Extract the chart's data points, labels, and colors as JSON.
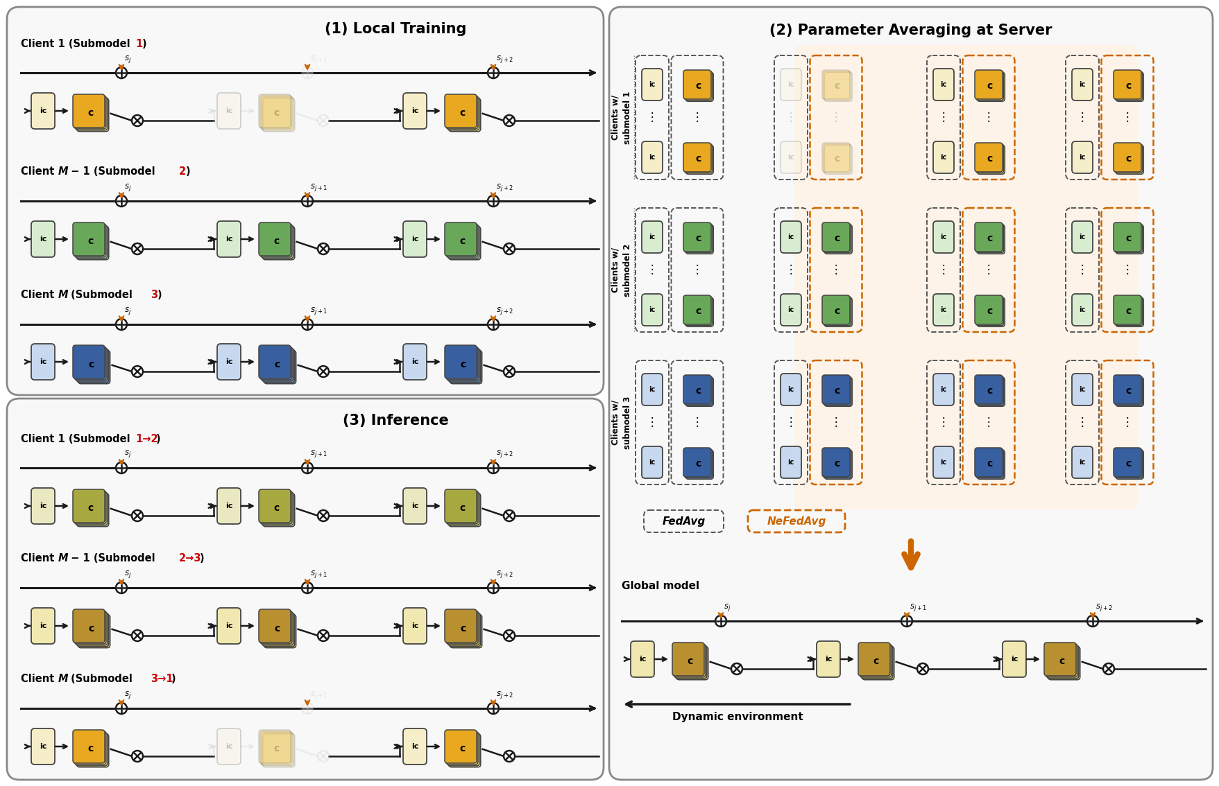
{
  "title_local": "(1) Local Training",
  "title_param": "(2) Parameter Averaging at Server",
  "title_infer": "(3) Inference",
  "col_yellow_ic": "#F5EEC8",
  "col_yellow_c_bg": "#F0D878",
  "col_yellow_c_main": "#E8A820",
  "col_green_ic": "#D8EDD0",
  "col_green_c_bg": "#A8CC98",
  "col_green_c_main": "#68A858",
  "col_blue_ic": "#C8D8EE",
  "col_blue_c_bg": "#6890C0",
  "col_blue_c_main": "#3860A0",
  "col_mix1_ic": "#EAE8C0",
  "col_mix1_c_bg": "#C8CC80",
  "col_mix1_c_main": "#A8A840",
  "col_mix2_ic": "#F0E8B0",
  "col_mix2_c_bg": "#D8C060",
  "col_mix2_c_main": "#B89030",
  "col_mix3_ic": "#F0E8B0",
  "col_mix3_c_bg": "#D8C060",
  "col_mix3_c_main": "#B89030",
  "col_arrow": "#CC6600",
  "col_line": "#1A1A1A",
  "col_gray_ghost": "#C0C0C0",
  "col_red": "#CC0000",
  "col_panel_bg": "#F8F8F8",
  "col_nefedavg_bg": "#FDF3E8",
  "col_orange_dash": "#CC6600"
}
